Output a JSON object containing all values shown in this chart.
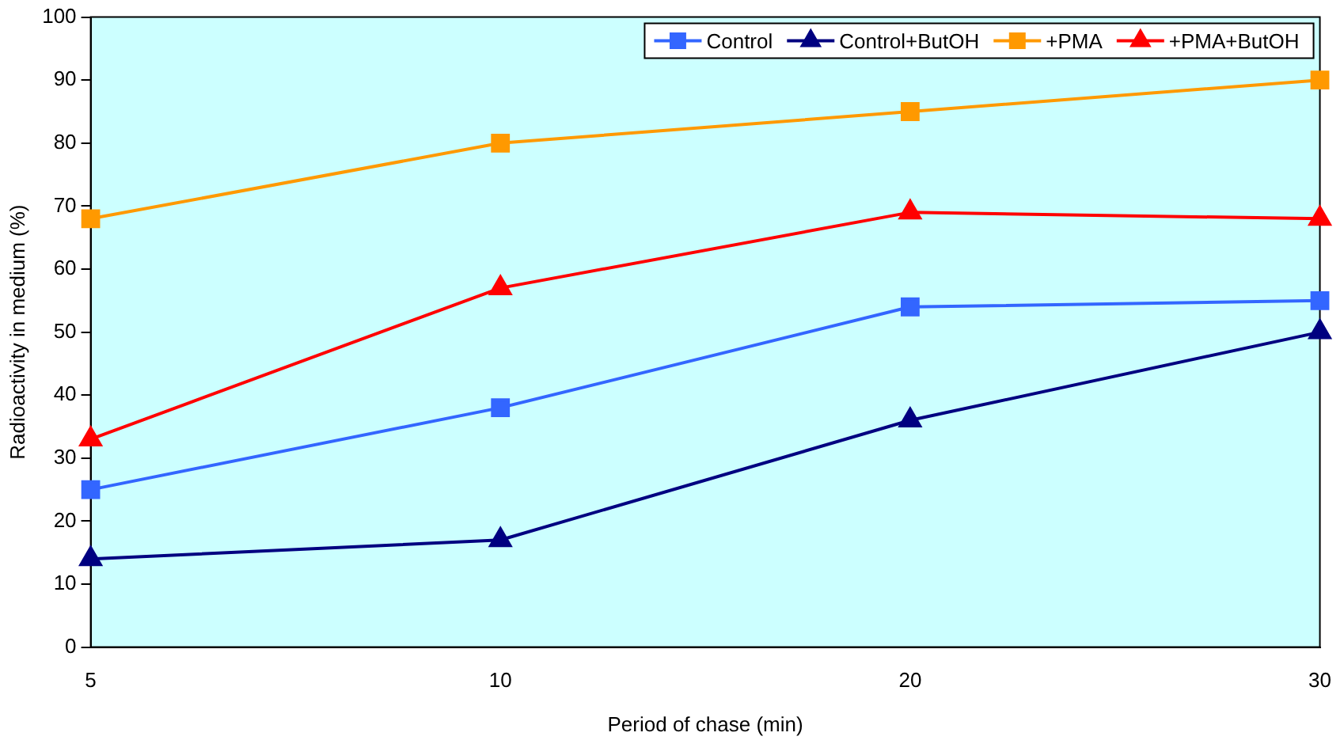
{
  "chart_data": {
    "type": "line",
    "xlabel": "Period of chase (min)",
    "ylabel": "Radioactivity in medium (%)",
    "categories": [
      "5",
      "10",
      "20",
      "30"
    ],
    "series": [
      {
        "name": "Control",
        "color": "#3366ff",
        "marker": "square",
        "values": [
          25,
          38,
          54,
          55
        ]
      },
      {
        "name": "Control+ButOH",
        "color": "#000080",
        "marker": "triangle",
        "values": [
          14,
          17,
          36,
          50
        ]
      },
      {
        "name": "+PMA",
        "color": "#ff9900",
        "marker": "square",
        "values": [
          68,
          80,
          85,
          90
        ]
      },
      {
        "name": "+PMA+ButOH",
        "color": "#ff0000",
        "marker": "triangle",
        "values": [
          33,
          57,
          69,
          68
        ]
      }
    ],
    "ylim": [
      0,
      100
    ],
    "yticks": [
      0,
      10,
      20,
      30,
      40,
      50,
      60,
      70,
      80,
      90,
      100
    ],
    "grid": false,
    "legend": "top right",
    "line_style": "solid"
  }
}
